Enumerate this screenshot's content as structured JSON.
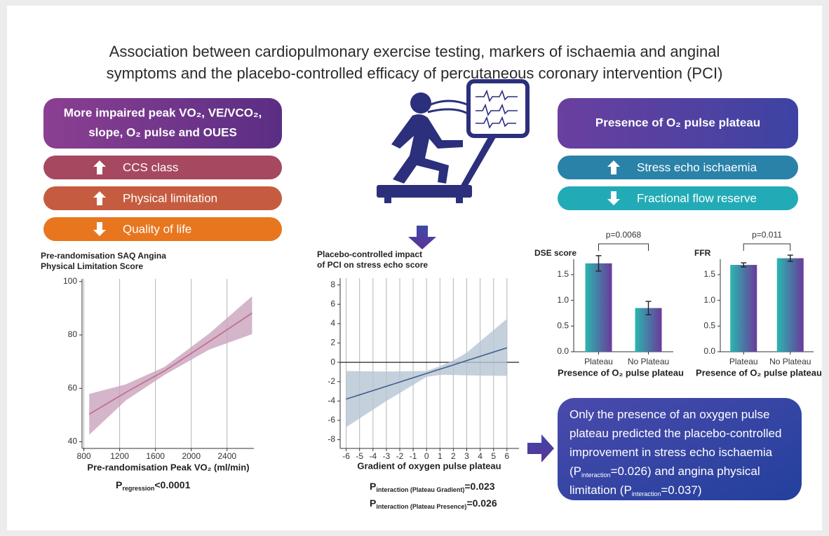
{
  "title": [
    "Association between cardiopulmonary exercise testing, markers of ischaemia and anginal",
    "symptoms and the placebo-controlled efficacy of percutaneous coronary intervention (PCI)"
  ],
  "left_panel": {
    "header": [
      "More impaired peak VO₂, VE/VCO₂,",
      "slope, O₂ pulse and OUES"
    ],
    "items": [
      {
        "label": "CCS class",
        "direction": "up"
      },
      {
        "label": "Physical limitation",
        "direction": "up"
      },
      {
        "label": "Quality of life",
        "direction": "down"
      }
    ]
  },
  "right_panel": {
    "header": [
      "Presence of O₂ pulse plateau"
    ],
    "items": [
      {
        "label": "Stress echo ischaemia",
        "direction": "up"
      },
      {
        "label": "Fractional flow reserve",
        "direction": "down"
      }
    ]
  },
  "conclusion": [
    [
      "Only the presence of an oxygen pulse"
    ],
    [
      "plateau predicted the placebo-controlled"
    ],
    [
      "improvement in stress echo ischaemia"
    ],
    [
      "(P",
      "interaction",
      "=0.026) and angina physical"
    ],
    [
      "limitation (P",
      "interaction",
      "=0.037)"
    ]
  ],
  "chart_data": [
    {
      "type": "line",
      "title": [
        "Pre-randomisation SAQ Angina",
        "Physical Limitation Score"
      ],
      "x_label": "Pre-randomisation Peak VO₂ (ml/min)",
      "xlim": [
        780,
        2700
      ],
      "xticks": [
        800,
        1200,
        1600,
        2000,
        2400
      ],
      "ylim": [
        37.5,
        101
      ],
      "yticks": [
        40,
        60,
        80,
        100
      ],
      "grid": true,
      "zero_line": false,
      "series": [
        {
          "color": "#c06a88",
          "band_color": "#c9a3bd",
          "x": [
            860,
            1270,
            1700,
            2200,
            2680
          ],
          "values": [
            50.3,
            58.5,
            66.5,
            77.5,
            88.2
          ],
          "lower": [
            42.6,
            55.5,
            65,
            74.5,
            80.3
          ],
          "upper": [
            57.9,
            61.5,
            68,
            80.5,
            94.5
          ]
        }
      ],
      "annotations": [
        [
          "P",
          "regression",
          "<0.0001"
        ]
      ]
    },
    {
      "type": "line",
      "title": [
        "Placebo-controlled impact",
        "of PCI on stress echo score"
      ],
      "x_label": "Gradient of oxygen pulse plateau",
      "xlim": [
        -6.45,
        6.9
      ],
      "xticks": [
        -6,
        -5,
        -4,
        -3,
        -2,
        -1,
        0,
        1,
        2,
        3,
        4,
        5,
        6
      ],
      "ylim": [
        -8.9,
        8.7
      ],
      "yticks": [
        -8,
        -6,
        -4,
        -2,
        0,
        2,
        4,
        6,
        8
      ],
      "grid": true,
      "zero_line": true,
      "series": [
        {
          "color": "#3f5f8a",
          "band_color": "#b7c4d4",
          "x": [
            -6,
            -3,
            0,
            1,
            2,
            3,
            6
          ],
          "values": [
            -3.8,
            -2.48,
            -1.15,
            -0.71,
            -0.27,
            0.18,
            1.5
          ],
          "lower": [
            -6.7,
            -4.0,
            -1.5,
            -1.3,
            -1.3,
            -1.35,
            -1.4
          ],
          "upper": [
            -0.9,
            -0.95,
            -0.9,
            -0.4,
            0.2,
            1.0,
            4.5
          ]
        }
      ],
      "annotations": [
        [
          "P",
          "interaction (Plateau Gradient)",
          "=0.023"
        ],
        [
          "P",
          "interaction (Plateau Presence)",
          "=0.026"
        ]
      ]
    },
    {
      "type": "bar",
      "y_label": "DSE score",
      "x_label": "Presence of O₂ pulse plateau",
      "categories": [
        "Plateau",
        "No Plateau"
      ],
      "values": [
        1.72,
        0.85
      ],
      "errors": [
        0.15,
        0.13
      ],
      "color": [
        "#2bb6ae",
        "#6a3a9c"
      ],
      "ylim": [
        0,
        1.8
      ],
      "yticks": [
        {
          "value": 0,
          "label": "0.0"
        },
        0.5,
        {
          "value": 1,
          "label": "1.0"
        },
        1.5
      ],
      "comparison": "p=0.0068"
    },
    {
      "type": "bar",
      "y_label": "FFR",
      "x_label": "Presence of O₂ pulse plateau",
      "categories": [
        "Plateau",
        "No Plateau"
      ],
      "values": [
        1.69,
        1.82
      ],
      "errors": [
        0.04,
        0.06
      ],
      "color": [
        "#2bb6ae",
        "#6a3a9c"
      ],
      "ylim": [
        0,
        1.8
      ],
      "yticks": [
        {
          "value": 0,
          "label": "0.0"
        },
        0.5,
        {
          "value": 1,
          "label": "1.0"
        },
        1.5
      ],
      "comparison": "p=0.011"
    }
  ]
}
